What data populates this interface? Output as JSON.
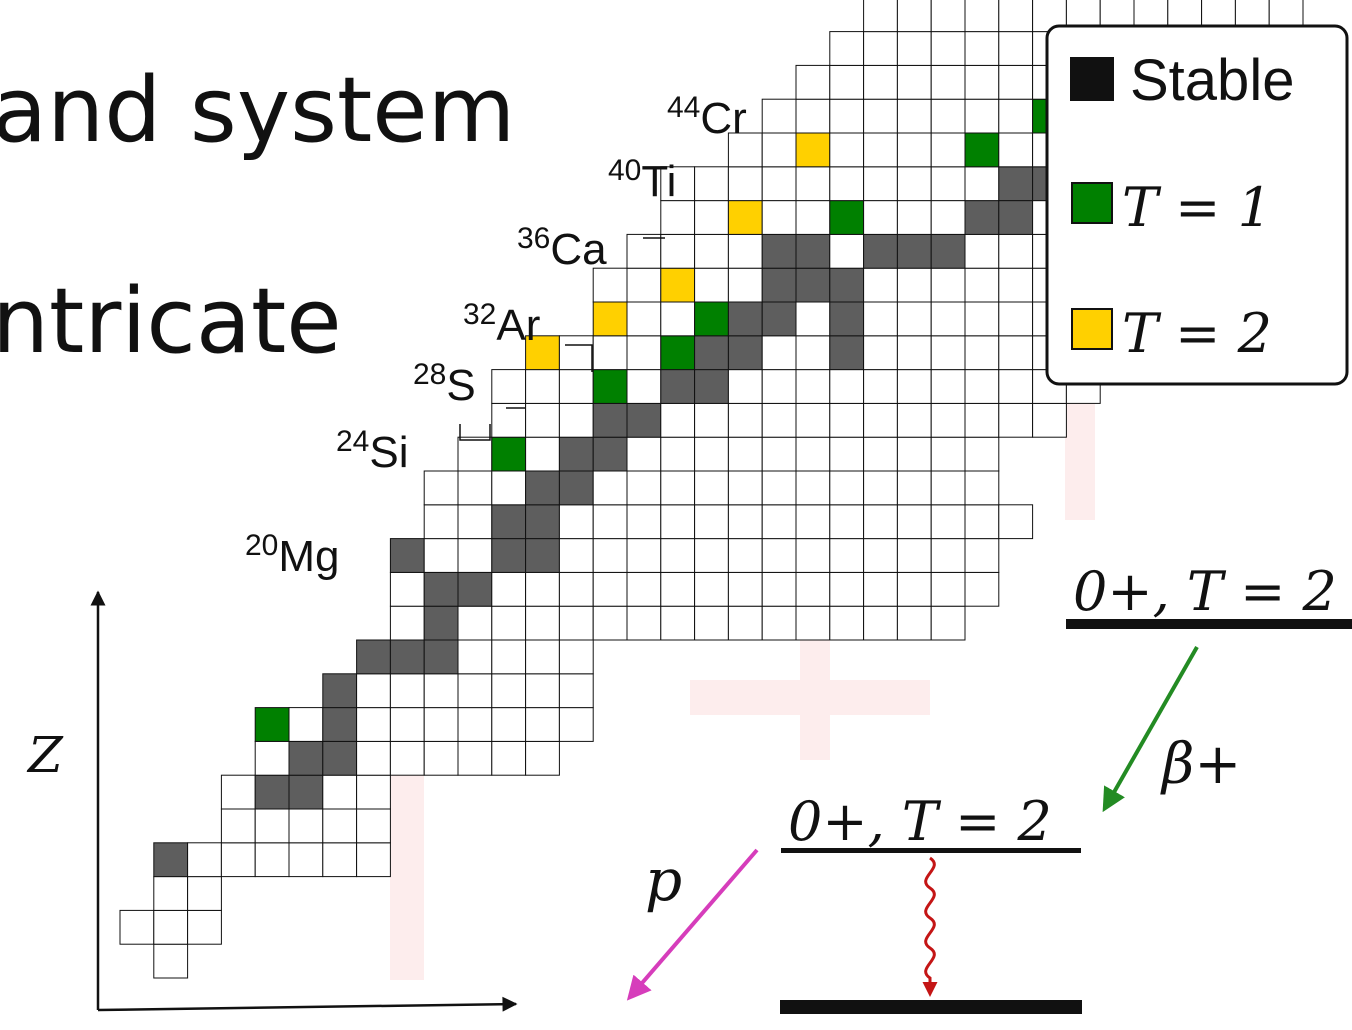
{
  "slide": {
    "line1": "and system",
    "line2": "ntricate"
  },
  "chart_labels": {
    "nuclei": [
      {
        "mass": "20",
        "symbol": "Mg"
      },
      {
        "mass": "24",
        "symbol": "Si"
      },
      {
        "mass": "28",
        "symbol": "S"
      },
      {
        "mass": "32",
        "symbol": "Ar"
      },
      {
        "mass": "36",
        "symbol": "Ca"
      },
      {
        "mass": "40",
        "symbol": "Ti"
      },
      {
        "mass": "44",
        "symbol": "Cr"
      }
    ],
    "axis_z": "Z"
  },
  "legend": {
    "items": [
      {
        "label": "Stable",
        "color": "#5e5e5e"
      },
      {
        "label": "T = 1",
        "color": "#008000"
      },
      {
        "label": "T = 2",
        "color": "#ffd000"
      }
    ]
  },
  "decay_scheme": {
    "top_level": "0+, T = 2",
    "mid_level": "0+, T = 2",
    "beta_label": "β+",
    "proton_label": "p"
  },
  "colors": {
    "stable": "#5e5e5e",
    "t1": "#008000",
    "t2": "#ffd000",
    "beta_arrow": "#238b23",
    "proton_arrow": "#d63dbb",
    "gamma_arrow": "#c41515"
  }
}
